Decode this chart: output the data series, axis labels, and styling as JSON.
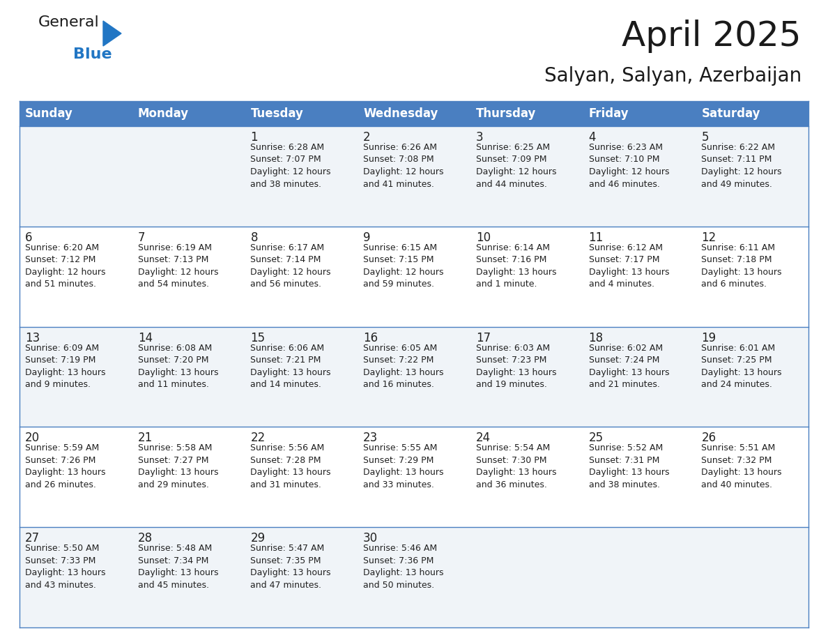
{
  "title": "April 2025",
  "subtitle": "Salyan, Salyan, Azerbaijan",
  "header_bg": "#4a7fc1",
  "header_text": "#FFFFFF",
  "row_bg_light": "#f0f4f8",
  "row_bg_white": "#FFFFFF",
  "separator_color": "#4a7fc1",
  "text_color": "#222222",
  "day_names": [
    "Sunday",
    "Monday",
    "Tuesday",
    "Wednesday",
    "Thursday",
    "Friday",
    "Saturday"
  ],
  "weeks": [
    [
      {
        "day": "",
        "info": ""
      },
      {
        "day": "",
        "info": ""
      },
      {
        "day": "1",
        "info": "Sunrise: 6:28 AM\nSunset: 7:07 PM\nDaylight: 12 hours\nand 38 minutes."
      },
      {
        "day": "2",
        "info": "Sunrise: 6:26 AM\nSunset: 7:08 PM\nDaylight: 12 hours\nand 41 minutes."
      },
      {
        "day": "3",
        "info": "Sunrise: 6:25 AM\nSunset: 7:09 PM\nDaylight: 12 hours\nand 44 minutes."
      },
      {
        "day": "4",
        "info": "Sunrise: 6:23 AM\nSunset: 7:10 PM\nDaylight: 12 hours\nand 46 minutes."
      },
      {
        "day": "5",
        "info": "Sunrise: 6:22 AM\nSunset: 7:11 PM\nDaylight: 12 hours\nand 49 minutes."
      }
    ],
    [
      {
        "day": "6",
        "info": "Sunrise: 6:20 AM\nSunset: 7:12 PM\nDaylight: 12 hours\nand 51 minutes."
      },
      {
        "day": "7",
        "info": "Sunrise: 6:19 AM\nSunset: 7:13 PM\nDaylight: 12 hours\nand 54 minutes."
      },
      {
        "day": "8",
        "info": "Sunrise: 6:17 AM\nSunset: 7:14 PM\nDaylight: 12 hours\nand 56 minutes."
      },
      {
        "day": "9",
        "info": "Sunrise: 6:15 AM\nSunset: 7:15 PM\nDaylight: 12 hours\nand 59 minutes."
      },
      {
        "day": "10",
        "info": "Sunrise: 6:14 AM\nSunset: 7:16 PM\nDaylight: 13 hours\nand 1 minute."
      },
      {
        "day": "11",
        "info": "Sunrise: 6:12 AM\nSunset: 7:17 PM\nDaylight: 13 hours\nand 4 minutes."
      },
      {
        "day": "12",
        "info": "Sunrise: 6:11 AM\nSunset: 7:18 PM\nDaylight: 13 hours\nand 6 minutes."
      }
    ],
    [
      {
        "day": "13",
        "info": "Sunrise: 6:09 AM\nSunset: 7:19 PM\nDaylight: 13 hours\nand 9 minutes."
      },
      {
        "day": "14",
        "info": "Sunrise: 6:08 AM\nSunset: 7:20 PM\nDaylight: 13 hours\nand 11 minutes."
      },
      {
        "day": "15",
        "info": "Sunrise: 6:06 AM\nSunset: 7:21 PM\nDaylight: 13 hours\nand 14 minutes."
      },
      {
        "day": "16",
        "info": "Sunrise: 6:05 AM\nSunset: 7:22 PM\nDaylight: 13 hours\nand 16 minutes."
      },
      {
        "day": "17",
        "info": "Sunrise: 6:03 AM\nSunset: 7:23 PM\nDaylight: 13 hours\nand 19 minutes."
      },
      {
        "day": "18",
        "info": "Sunrise: 6:02 AM\nSunset: 7:24 PM\nDaylight: 13 hours\nand 21 minutes."
      },
      {
        "day": "19",
        "info": "Sunrise: 6:01 AM\nSunset: 7:25 PM\nDaylight: 13 hours\nand 24 minutes."
      }
    ],
    [
      {
        "day": "20",
        "info": "Sunrise: 5:59 AM\nSunset: 7:26 PM\nDaylight: 13 hours\nand 26 minutes."
      },
      {
        "day": "21",
        "info": "Sunrise: 5:58 AM\nSunset: 7:27 PM\nDaylight: 13 hours\nand 29 minutes."
      },
      {
        "day": "22",
        "info": "Sunrise: 5:56 AM\nSunset: 7:28 PM\nDaylight: 13 hours\nand 31 minutes."
      },
      {
        "day": "23",
        "info": "Sunrise: 5:55 AM\nSunset: 7:29 PM\nDaylight: 13 hours\nand 33 minutes."
      },
      {
        "day": "24",
        "info": "Sunrise: 5:54 AM\nSunset: 7:30 PM\nDaylight: 13 hours\nand 36 minutes."
      },
      {
        "day": "25",
        "info": "Sunrise: 5:52 AM\nSunset: 7:31 PM\nDaylight: 13 hours\nand 38 minutes."
      },
      {
        "day": "26",
        "info": "Sunrise: 5:51 AM\nSunset: 7:32 PM\nDaylight: 13 hours\nand 40 minutes."
      }
    ],
    [
      {
        "day": "27",
        "info": "Sunrise: 5:50 AM\nSunset: 7:33 PM\nDaylight: 13 hours\nand 43 minutes."
      },
      {
        "day": "28",
        "info": "Sunrise: 5:48 AM\nSunset: 7:34 PM\nDaylight: 13 hours\nand 45 minutes."
      },
      {
        "day": "29",
        "info": "Sunrise: 5:47 AM\nSunset: 7:35 PM\nDaylight: 13 hours\nand 47 minutes."
      },
      {
        "day": "30",
        "info": "Sunrise: 5:46 AM\nSunset: 7:36 PM\nDaylight: 13 hours\nand 50 minutes."
      },
      {
        "day": "",
        "info": ""
      },
      {
        "day": "",
        "info": ""
      },
      {
        "day": "",
        "info": ""
      }
    ]
  ],
  "logo_color_general": "#1a1a1a",
  "logo_color_blue": "#2176C4",
  "logo_triangle_color": "#2176C4",
  "title_fontsize": 36,
  "subtitle_fontsize": 20,
  "header_fontsize": 12,
  "day_num_fontsize": 12,
  "info_fontsize": 9
}
